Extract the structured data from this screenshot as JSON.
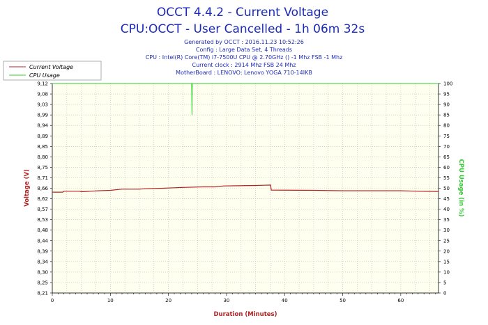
{
  "header": {
    "title_line1": "OCCT 4.4.2 - Current Voltage",
    "title_line2": "CPU:OCCT - User Cancelled - 1h 06m 32s",
    "info_lines": [
      "Generated by OCCT : 2016.11.23 10:52:26",
      "Config : Large Data Set, 4 Threads",
      "CPU : Intel(R) Core(TM) i7-7500U CPU @ 2.70GHz () -1 Mhz FSB -1 Mhz",
      "Current clock : 2914 Mhz FSB 24 Mhz",
      "MotherBoard : LENOVO: Lenovo YOGA 710-14IKB"
    ]
  },
  "colors": {
    "voltage": "#b22222",
    "cpu": "#33cc33",
    "plot_bg": "#fffff0",
    "grid": "#bbbbbb",
    "title": "#1c2bb8"
  },
  "chart_data": {
    "type": "line",
    "xlabel": "Duration (Minutes)",
    "ylabel": "Voltage (V)",
    "y2label": "CPU Usage (in %)",
    "xlim": [
      0,
      66.5
    ],
    "ylim": [
      8.21,
      9.12
    ],
    "y2lim": [
      0,
      100
    ],
    "x_ticks": [
      0,
      10,
      20,
      30,
      40,
      50,
      60
    ],
    "y_ticks": [
      "8,21",
      "8,25",
      "8,30",
      "8,34",
      "8,39",
      "8,44",
      "8,48",
      "8,53",
      "8,57",
      "8,62",
      "8,66",
      "8,71",
      "8,75",
      "8,80",
      "8,85",
      "8,89",
      "8,94",
      "8,99",
      "9,03",
      "9,08",
      "9,12"
    ],
    "y2_ticks": [
      "0",
      "5",
      "10",
      "15",
      "20",
      "25",
      "30",
      "35",
      "40",
      "45",
      "50",
      "55",
      "60",
      "65",
      "70",
      "75",
      "80",
      "85",
      "90",
      "95",
      "100"
    ],
    "legend": {
      "position": "top-left"
    },
    "grid": true,
    "series": [
      {
        "name": "Current Voltage",
        "axis": "left",
        "points": [
          [
            0,
            8.648
          ],
          [
            1.8,
            8.648
          ],
          [
            2,
            8.652
          ],
          [
            4.7,
            8.652
          ],
          [
            5,
            8.65
          ],
          [
            6.5,
            8.652
          ],
          [
            8,
            8.654
          ],
          [
            10,
            8.656
          ],
          [
            11.5,
            8.66
          ],
          [
            12,
            8.661
          ],
          [
            15,
            8.661
          ],
          [
            16,
            8.663
          ],
          [
            19,
            8.665
          ],
          [
            21,
            8.667
          ],
          [
            23,
            8.669
          ],
          [
            26,
            8.671
          ],
          [
            28,
            8.671
          ],
          [
            29.5,
            8.675
          ],
          [
            32,
            8.676
          ],
          [
            35,
            8.677
          ],
          [
            37.6,
            8.679
          ],
          [
            37.7,
            8.657
          ],
          [
            45,
            8.656
          ],
          [
            50,
            8.654
          ],
          [
            55,
            8.654
          ],
          [
            60,
            8.654
          ],
          [
            63,
            8.652
          ],
          [
            66.5,
            8.651
          ]
        ]
      },
      {
        "name": "CPU Usage",
        "axis": "right",
        "points": [
          [
            0,
            100
          ],
          [
            24,
            100
          ],
          [
            24,
            100
          ],
          [
            24.05,
            85
          ],
          [
            24.1,
            100
          ],
          [
            66.5,
            100
          ]
        ]
      }
    ]
  }
}
